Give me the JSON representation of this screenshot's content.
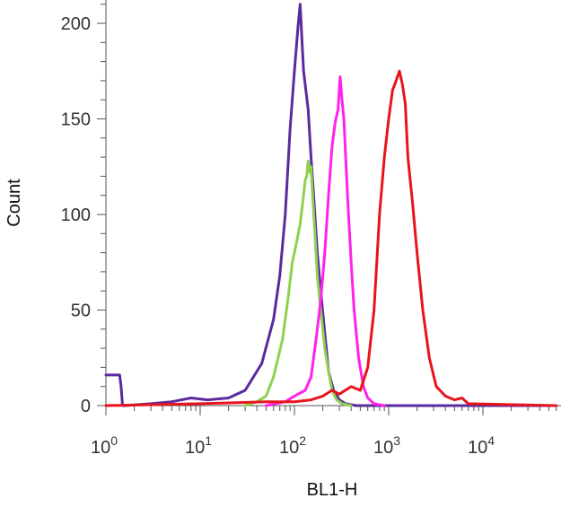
{
  "chart_data": {
    "type": "line",
    "title": "",
    "xlabel": "BL1-H",
    "ylabel": "Count",
    "x_scale": "log",
    "xlim": [
      1,
      60000
    ],
    "ylim": [
      0,
      210
    ],
    "y_ticks": [
      {
        "value": 0,
        "label": "0"
      },
      {
        "value": 50,
        "label": "50"
      },
      {
        "value": 100,
        "label": "100"
      },
      {
        "value": 150,
        "label": "150"
      },
      {
        "value": 200,
        "label": "200"
      }
    ],
    "x_ticks": [
      {
        "value": 1,
        "base": "10",
        "exp": "0"
      },
      {
        "value": 10,
        "base": "10",
        "exp": "1"
      },
      {
        "value": 100,
        "base": "10",
        "exp": "2"
      },
      {
        "value": 1000,
        "base": "10",
        "exp": "3"
      },
      {
        "value": 10000,
        "base": "10",
        "exp": "4"
      }
    ],
    "grid": false,
    "legend": "none",
    "series": [
      {
        "color": "#5b2a9e",
        "x": [
          1,
          1.4,
          1.45,
          1.5,
          1.6,
          3,
          5,
          8,
          12,
          20,
          30,
          45,
          60,
          70,
          80,
          90,
          100,
          110,
          115,
          120,
          125,
          130,
          140,
          150,
          160,
          175,
          190,
          210,
          230,
          260,
          300,
          350,
          450,
          700,
          60000
        ],
        "y": [
          16,
          16,
          10,
          0,
          0,
          1,
          2,
          4,
          3,
          4,
          8,
          22,
          45,
          68,
          100,
          145,
          175,
          200,
          210,
          192,
          175,
          168,
          155,
          130,
          110,
          80,
          60,
          38,
          18,
          8,
          3,
          1,
          0,
          0,
          0
        ]
      },
      {
        "color": "#8fd14f",
        "x": [
          30,
          40,
          50,
          60,
          75,
          85,
          95,
          105,
          115,
          125,
          130,
          135,
          140,
          145,
          150,
          155,
          165,
          175,
          190,
          210,
          230,
          250,
          280,
          320,
          400
        ],
        "y": [
          0,
          2,
          5,
          15,
          35,
          55,
          75,
          85,
          95,
          110,
          118,
          120,
          128,
          122,
          125,
          112,
          90,
          68,
          50,
          30,
          18,
          8,
          3,
          1,
          0
        ]
      },
      {
        "color": "#ff22ee",
        "x": [
          50,
          80,
          100,
          130,
          150,
          170,
          190,
          210,
          230,
          250,
          270,
          290,
          305,
          320,
          335,
          350,
          370,
          400,
          430,
          480,
          540,
          600,
          700,
          900
        ],
        "y": [
          0,
          2,
          5,
          8,
          15,
          35,
          55,
          80,
          110,
          135,
          148,
          155,
          172,
          160,
          150,
          130,
          105,
          75,
          50,
          25,
          10,
          4,
          1,
          0
        ]
      },
      {
        "color": "#e8141b",
        "x": [
          1,
          10,
          50,
          100,
          150,
          200,
          250,
          300,
          400,
          500,
          600,
          700,
          800,
          900,
          1000,
          1100,
          1200,
          1300,
          1400,
          1500,
          1600,
          1800,
          2000,
          2300,
          2700,
          3200,
          4000,
          5000,
          6000,
          7000,
          60000
        ],
        "y": [
          0,
          1,
          2,
          2,
          3,
          5,
          8,
          6,
          10,
          8,
          20,
          50,
          100,
          130,
          150,
          165,
          170,
          175,
          168,
          158,
          130,
          105,
          80,
          50,
          25,
          10,
          5,
          3,
          4,
          1,
          0
        ]
      }
    ]
  }
}
